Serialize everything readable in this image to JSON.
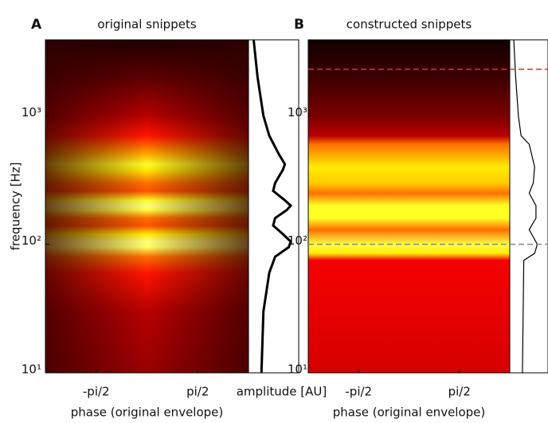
{
  "chart_data": [
    {
      "type": "heatmap",
      "panel_label": "A",
      "title": "original snippets",
      "xlabel": "phase (original envelope)",
      "ylabel": "frequency [Hz]",
      "profile_label": "amplitude [AU]",
      "xlim": [
        -3.1416,
        3.1416
      ],
      "xticks": [
        {
          "value": -1.5708,
          "label": "-pi/2"
        },
        {
          "value": 1.5708,
          "label": "pi/2"
        }
      ],
      "ylim": [
        10,
        3900
      ],
      "log_y": true,
      "yticks": [
        {
          "value": 10,
          "label": "10¹"
        },
        {
          "value": 100,
          "label": "10²"
        },
        {
          "value": 1000,
          "label": "10³"
        }
      ],
      "frequencies": [
        10,
        30,
        60,
        80,
        95,
        105,
        120,
        140,
        160,
        185,
        200,
        220,
        260,
        300,
        380,
        420,
        500,
        700,
        1000,
        2000,
        3900
      ],
      "intensity": [
        0.25,
        0.3,
        0.45,
        0.6,
        0.95,
        1,
        0.8,
        0.55,
        0.6,
        0.9,
        1,
        0.85,
        0.55,
        0.6,
        0.8,
        0.85,
        0.7,
        0.45,
        0.3,
        0.15,
        0.05
      ]
    },
    {
      "type": "heatmap",
      "panel_label": "B",
      "title": "constructed snippets",
      "xlabel": "phase (original envelope)",
      "xlim": [
        -3.1416,
        3.1416
      ],
      "xticks": [
        {
          "value": -1.5708,
          "label": "-pi/2"
        },
        {
          "value": 1.5708,
          "label": "pi/2"
        }
      ],
      "ylim": [
        10,
        3900
      ],
      "log_y": true,
      "yticks": [
        {
          "value": 10,
          "label": "10¹"
        },
        {
          "value": 100,
          "label": "10²"
        },
        {
          "value": 1000,
          "label": "10³"
        }
      ],
      "frequencies": [
        10,
        75,
        85,
        100,
        130,
        160,
        200,
        250,
        300,
        400,
        600,
        700,
        1000,
        2000,
        3900
      ],
      "intensity": [
        0.35,
        0.4,
        0.8,
        0.9,
        0.6,
        0.85,
        0.85,
        0.6,
        0.75,
        0.8,
        0.6,
        0.3,
        0.2,
        0.1,
        0.03
      ],
      "hlines": [
        {
          "value": 100,
          "color": "#888888"
        },
        {
          "value": 2300,
          "color": "#e03020"
        }
      ]
    }
  ]
}
